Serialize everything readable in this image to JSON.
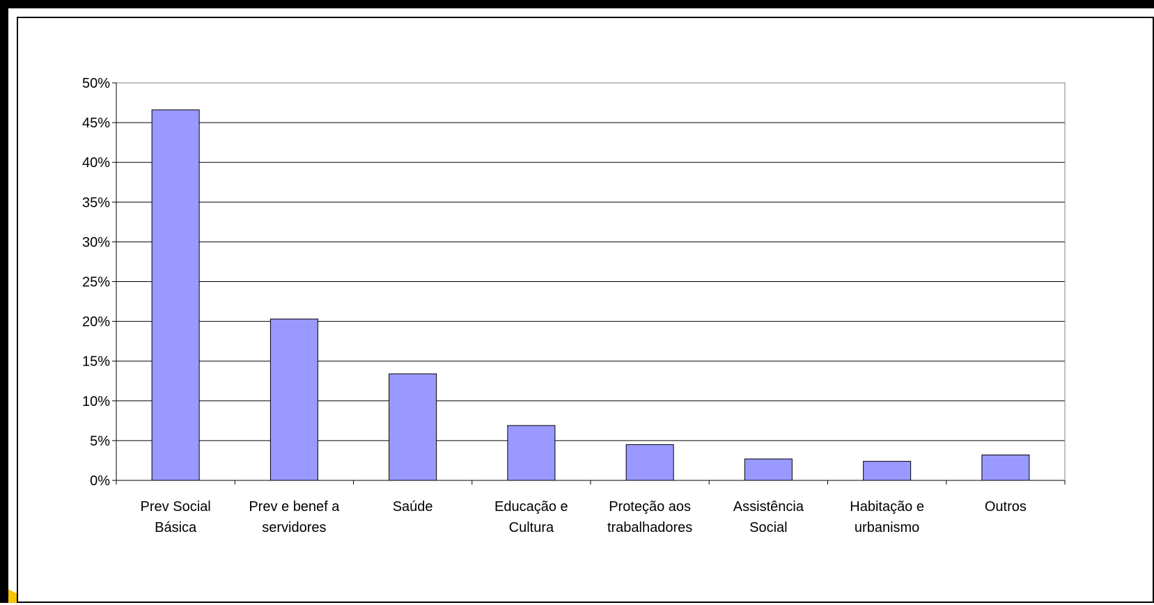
{
  "chart_data": {
    "type": "bar",
    "title": "",
    "xlabel": "",
    "ylabel": "",
    "categories": [
      [
        "Prev Social",
        "Básica"
      ],
      [
        "Prev e benef a",
        "servidores"
      ],
      [
        "Saúde"
      ],
      [
        "Educação e",
        "Cultura"
      ],
      [
        "Proteção aos",
        "trabalhadores"
      ],
      [
        "Assistência",
        "Social"
      ],
      [
        "Habitação e",
        "urbanismo"
      ],
      [
        "Outros"
      ]
    ],
    "values": [
      46.6,
      20.3,
      13.4,
      6.9,
      4.5,
      2.7,
      2.4,
      3.2
    ],
    "ylim": [
      0,
      50
    ],
    "yticks": [
      "0%",
      "5%",
      "10%",
      "15%",
      "20%",
      "25%",
      "30%",
      "35%",
      "40%",
      "45%",
      "50%"
    ],
    "grid": true,
    "legend": "none",
    "colors": {
      "bar_fill": "#9999ff",
      "bar_stroke": "#000000",
      "grid": "#000000",
      "border": "#000000",
      "accent": "#f5c400"
    }
  }
}
